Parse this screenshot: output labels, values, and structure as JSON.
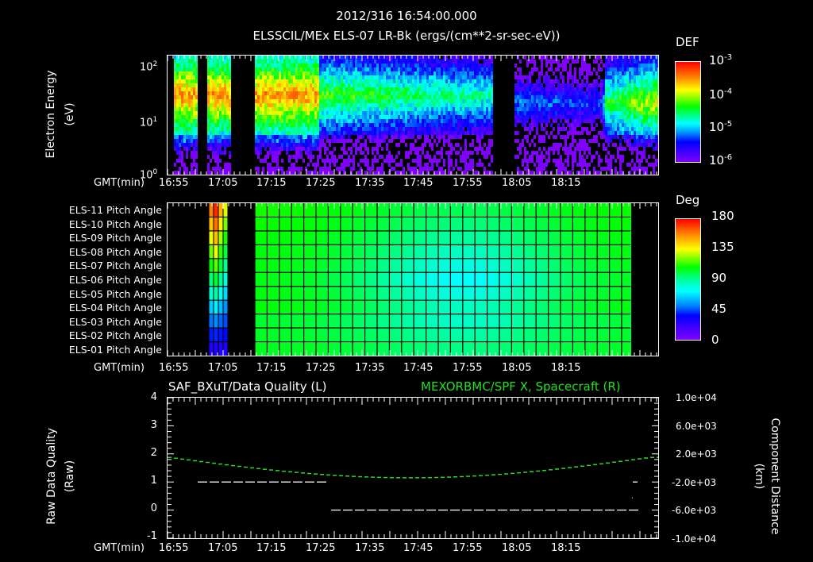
{
  "header": {
    "timestamp": "2012/316 16:54:00.000",
    "subtitle": "ELSSCIL/MEx ELS-07 LR-Bk  (ergs/(cm**2-sr-sec-eV))"
  },
  "time_axis": {
    "label": "GMT(min)",
    "ticks": [
      "16:55",
      "17:05",
      "17:15",
      "17:25",
      "17:35",
      "17:45",
      "17:55",
      "18:05",
      "18:15"
    ]
  },
  "panel1": {
    "ylabel_line1": "Electron Energy",
    "ylabel_line2": "(eV)",
    "yticks": [
      {
        "base": "10",
        "exp": "2"
      },
      {
        "base": "10",
        "exp": "1"
      },
      {
        "base": "10",
        "exp": "0"
      }
    ],
    "colorbar": {
      "title": "DEF",
      "labels": [
        {
          "base": "10",
          "exp": "-3"
        },
        {
          "base": "10",
          "exp": "-4"
        },
        {
          "base": "10",
          "exp": "-5"
        },
        {
          "base": "10",
          "exp": "-6"
        }
      ]
    }
  },
  "panel2": {
    "rows": [
      "ELS-11 Pitch Angle",
      "ELS-10 Pitch Angle",
      "ELS-09 Pitch Angle",
      "ELS-08 Pitch Angle",
      "ELS-07 Pitch Angle",
      "ELS-06 Pitch Angle",
      "ELS-05 Pitch Angle",
      "ELS-04 Pitch Angle",
      "ELS-03 Pitch Angle",
      "ELS-02 Pitch Angle",
      "ELS-01 Pitch Angle"
    ],
    "colorbar": {
      "title": "Deg",
      "labels": [
        "180",
        "135",
        "90",
        "45",
        "0"
      ]
    }
  },
  "panel3": {
    "left_title": "SAF_BXuT/Data Quality (L)",
    "right_title": "MEXORBMC/SPF X, Spacecraft (R)",
    "ylabel_left_line1": "Raw Data Quality",
    "ylabel_left_line2": "(Raw)",
    "ylabel_right_line1": "Component Distance",
    "ylabel_right_line2": "(km)",
    "yticks_left": [
      "4",
      "3",
      "2",
      "1",
      "0",
      "-1"
    ],
    "yticks_right": [
      "1.0e+04",
      "6.0e+03",
      "2.0e+03",
      "-2.0e+03",
      "-6.0e+03",
      "-1.0e+04"
    ],
    "colors": {
      "left_series": "#ffffff",
      "right_series": "#22e022"
    }
  },
  "chart_data": [
    {
      "type": "heatmap",
      "title": "ELSSCIL/MEx ELS-07 LR-Bk (ergs/(cm**2-sr-sec-eV))",
      "xlabel": "GMT(min)",
      "ylabel": "Electron Energy (eV)",
      "x_ticks": [
        "16:55",
        "17:05",
        "17:15",
        "17:25",
        "17:35",
        "17:45",
        "17:55",
        "18:05",
        "18:15"
      ],
      "y_scale": "log",
      "ylim": [
        1,
        150
      ],
      "colorbar": {
        "label": "DEF",
        "scale": "log",
        "range": [
          1e-06,
          0.001
        ]
      },
      "data_gaps": [
        [
          "16:59",
          "17:00"
        ],
        [
          "17:05",
          "17:10"
        ],
        [
          "17:55",
          "17:59"
        ]
      ],
      "notes": "Peak flux (~1e-4 to 5e-4) at 20-50 eV before 17:25; weaker green band after; recovers near 18:13-18:22"
    },
    {
      "type": "heatmap",
      "title": "ELS Pitch Angle",
      "xlabel": "GMT(min)",
      "categories": [
        "ELS-11",
        "ELS-10",
        "ELS-09",
        "ELS-08",
        "ELS-07",
        "ELS-06",
        "ELS-05",
        "ELS-04",
        "ELS-03",
        "ELS-02",
        "ELS-01"
      ],
      "colorbar": {
        "label": "Deg",
        "range": [
          0,
          180
        ],
        "ticks": [
          0,
          45,
          90,
          135,
          180
        ]
      },
      "coverage": [
        [
          "17:01",
          "17:04"
        ],
        [
          "17:10",
          "18:18"
        ]
      ],
      "notes": "Values mostly 70-110 deg; minimum ~55 deg near 17:45 for ELS-05..07"
    },
    {
      "type": "line",
      "title": "SAF_BXuT/Data Quality (L) and MEXORBMC/SPF X, Spacecraft (R)",
      "xlabel": "GMT(min)",
      "x": [
        "16:55",
        "17:05",
        "17:15",
        "17:25",
        "17:35",
        "17:45",
        "17:55",
        "18:05",
        "18:15",
        "18:22"
      ],
      "series": [
        {
          "name": "Data Quality (L)",
          "axis": "left",
          "ylim": [
            -1,
            4
          ],
          "values": [
            null,
            1,
            1,
            1,
            0,
            0,
            0,
            0,
            0,
            1
          ]
        },
        {
          "name": "SPF X Spacecraft (R, km)",
          "axis": "right",
          "ylim": [
            -10000,
            10000
          ],
          "values": [
            1500,
            800,
            200,
            -500,
            -1100,
            -1300,
            -1200,
            -600,
            400,
            1700
          ]
        }
      ]
    }
  ]
}
